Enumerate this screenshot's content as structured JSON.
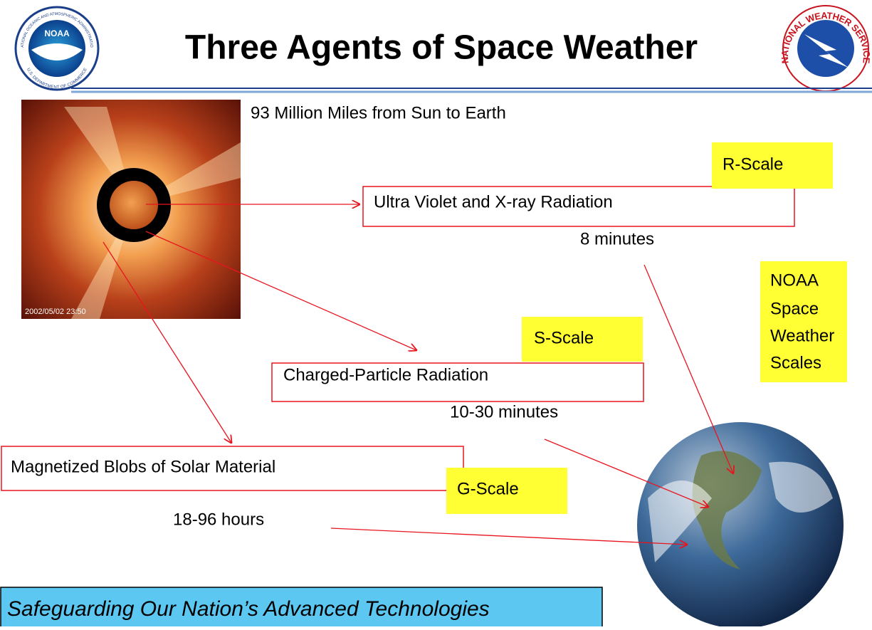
{
  "header": {
    "title": "Three Agents of Space Weather",
    "left_logo": {
      "label": "NOAA",
      "ring_top": "NATIONAL OCEANIC AND ATMOSPHERIC ADMINISTRATION",
      "ring_bottom": "U.S. DEPARTMENT OF COMMERCE"
    },
    "right_logo": {
      "ring": "NATIONAL WEATHER SERVICE"
    }
  },
  "sun_image": {
    "timestamp": "2002/05/02 23:50"
  },
  "distance": "93 Million Miles from Sun to Earth",
  "agents": [
    {
      "label": "Ultra Violet and X-ray Radiation",
      "time": "8 minutes",
      "scale": "R-Scale"
    },
    {
      "label": "Charged-Particle Radiation",
      "time": "10-30 minutes",
      "scale": "S-Scale"
    },
    {
      "label": "Magnetized Blobs of Solar Material",
      "time": "18-96 hours",
      "scale": "G-Scale"
    }
  ],
  "scales_note": [
    "NOAA",
    "Space",
    "Weather",
    "Scales"
  ],
  "footer": "Safeguarding Our Nation’s Advanced Technologies"
}
